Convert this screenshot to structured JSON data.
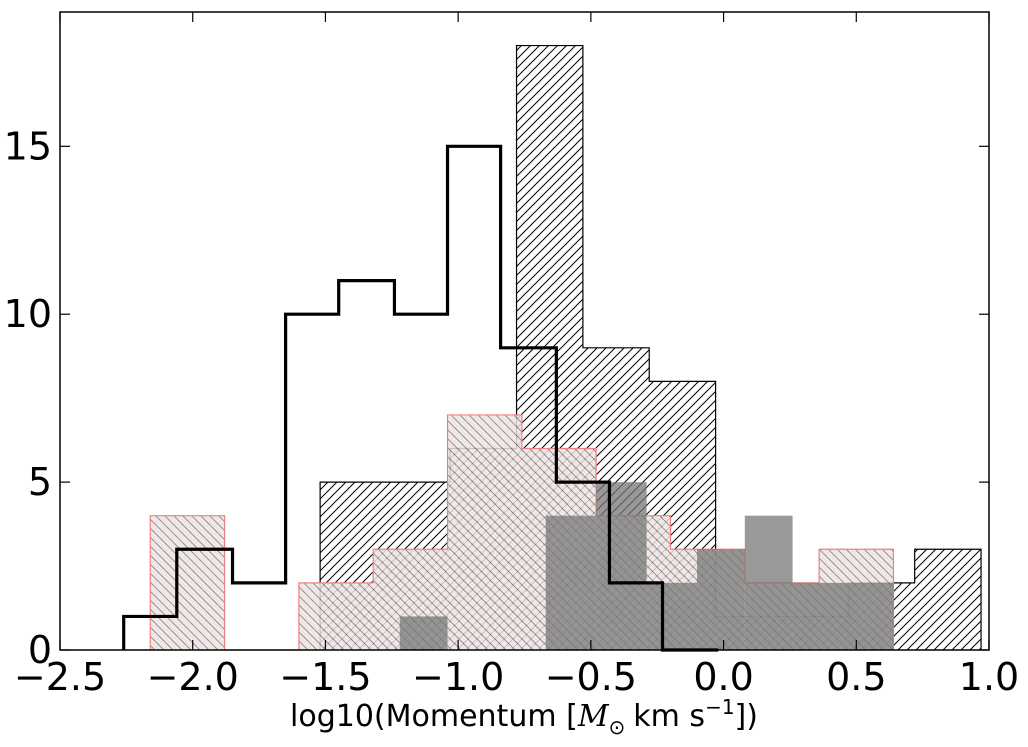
{
  "chart_data": {
    "type": "histogram",
    "xlabel": "log10(Momentum [",
    "xlabel_math": "M",
    "xlabel_math_sub": "⊙",
    "xlabel_tail": "km s",
    "xlabel_exp": "−1",
    "xlabel_close": "])",
    "ylabel": "",
    "title": "",
    "xlim": [
      -2.5,
      1.0
    ],
    "ylim": [
      0,
      19
    ],
    "x_ticks": [
      -2.5,
      -2.0,
      -1.5,
      -1.0,
      -0.5,
      0.0,
      0.5,
      1.0
    ],
    "x_tick_labels": [
      "−2.5",
      "−2.0",
      "−1.5",
      "−1.0",
      "−0.5",
      "0.0",
      "0.5",
      "1.0"
    ],
    "y_ticks": [
      0,
      5,
      10,
      15
    ],
    "y_tick_labels": [
      "0",
      "5",
      "10",
      "15"
    ],
    "grid": false,
    "series": [
      {
        "style": "hatch-black",
        "color": "#000000",
        "edges": [
          -1.52,
          -1.27,
          -1.03,
          -0.78,
          -0.53,
          -0.28,
          -0.03,
          0.22,
          0.47,
          0.72,
          0.97
        ],
        "counts": [
          5,
          5,
          6,
          18,
          9,
          8,
          1,
          1,
          2,
          3
        ]
      },
      {
        "style": "hatch-red",
        "color": "#f08080",
        "edges": [
          -2.16,
          -1.88,
          -1.6,
          -1.32,
          -1.04,
          -0.76,
          -0.48,
          -0.2,
          0.08,
          0.36,
          0.64
        ],
        "counts": [
          4,
          0,
          2,
          3,
          7,
          6,
          4,
          3,
          2,
          3
        ]
      },
      {
        "style": "filled-gray",
        "color": "#808080",
        "edges": [
          -1.22,
          -1.04,
          -0.86,
          -0.67,
          -0.48,
          -0.29,
          -0.1,
          0.08,
          0.26,
          0.45,
          0.64
        ],
        "counts": [
          1,
          0,
          0,
          4,
          5,
          2,
          3,
          4,
          2,
          2
        ]
      },
      {
        "style": "step-bold",
        "color": "#000000",
        "edges": [
          -2.26,
          -2.06,
          -1.85,
          -1.65,
          -1.45,
          -1.24,
          -1.04,
          -0.84,
          -0.63,
          -0.43,
          -0.23,
          -0.02
        ],
        "counts": [
          1,
          3,
          2,
          10,
          11,
          10,
          15,
          9,
          5,
          2,
          0
        ]
      }
    ]
  }
}
